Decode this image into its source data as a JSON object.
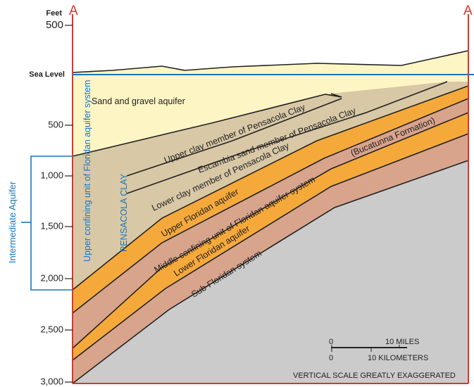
{
  "header": {
    "feet_label": "Feet",
    "left_end": "A",
    "right_end": "A"
  },
  "depth_axis": {
    "top_elevation": "500",
    "sea_level": "Sea Level",
    "depths": [
      "500",
      "1,000",
      "1,500",
      "2,000",
      "2,500",
      "3,000"
    ]
  },
  "bracket_label": "Intermediate Aquifer",
  "units": {
    "sand_gravel": "Sand and gravel aquifer",
    "upper_clay": "Upper clay member of Pensacola Clay",
    "escambia_sand": "Escambia sand member of Pensacola Clay",
    "lower_clay": "Lower clay member of Pensacola Clay",
    "upper_confining": "Upper confining unit of Floridan aquifer system",
    "pensacola_clay": "PENSACOLA CLAY",
    "upper_floridan": "Upper Floridan aquifer",
    "middle_confining": "Middle confining unit of Floridan aquifer system",
    "bucatunna": "(Bucatunna Formation)",
    "lower_floridan": "Lower Floridan aquifer",
    "sub_floridan": "Sub-Floridan system"
  },
  "scale_bar": {
    "miles_zero": "0",
    "miles": "10 MILES",
    "km_zero": "0",
    "km": "10 KILOMETERS"
  },
  "note": "VERTICAL SCALE GREATLY EXAGGERATED"
}
